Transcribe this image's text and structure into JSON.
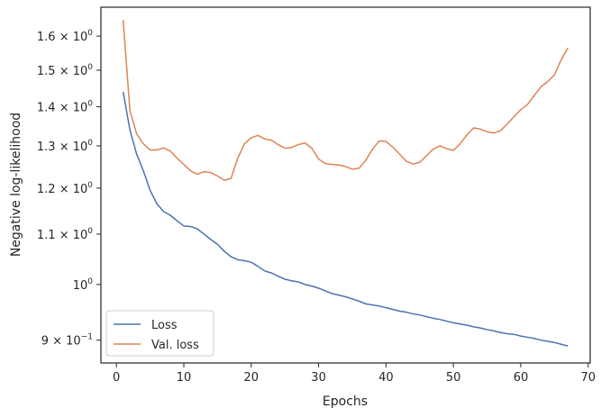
{
  "chart_data": {
    "type": "line",
    "xlabel": "Epochs",
    "ylabel": "Negative log-likelihood",
    "yscale": "log",
    "xlim": [
      -2.3,
      70.3
    ],
    "ylim": [
      0.862,
      1.69
    ],
    "grid": false,
    "legend_position": "lower-left",
    "x_ticks": [
      {
        "value": 0,
        "label": "0"
      },
      {
        "value": 10,
        "label": "10"
      },
      {
        "value": 20,
        "label": "20"
      },
      {
        "value": 30,
        "label": "30"
      },
      {
        "value": 40,
        "label": "40"
      },
      {
        "value": 50,
        "label": "50"
      },
      {
        "value": 60,
        "label": "60"
      },
      {
        "value": 70,
        "label": "70"
      }
    ],
    "y_ticks": [
      {
        "value": 0.9,
        "base": "9",
        "exp": "−1"
      },
      {
        "value": 1.0,
        "base": "10",
        "exp": "0"
      },
      {
        "value": 1.1,
        "base": "1.1",
        "exp": "0"
      },
      {
        "value": 1.2,
        "base": "1.2",
        "exp": "0"
      },
      {
        "value": 1.3,
        "base": "1.3",
        "exp": "0"
      },
      {
        "value": 1.4,
        "base": "1.4",
        "exp": "0"
      },
      {
        "value": 1.5,
        "base": "1.5",
        "exp": "0"
      },
      {
        "value": 1.6,
        "base": "1.6",
        "exp": "0"
      }
    ],
    "x": [
      1,
      2,
      3,
      4,
      5,
      6,
      7,
      8,
      9,
      10,
      11,
      12,
      13,
      14,
      15,
      16,
      17,
      18,
      19,
      20,
      21,
      22,
      23,
      24,
      25,
      26,
      27,
      28,
      29,
      30,
      31,
      32,
      33,
      34,
      35,
      36,
      37,
      38,
      39,
      40,
      41,
      42,
      43,
      44,
      45,
      46,
      47,
      48,
      49,
      50,
      51,
      52,
      53,
      54,
      55,
      56,
      57,
      58,
      59,
      60,
      61,
      62,
      63,
      64,
      65,
      66,
      67
    ],
    "series": [
      {
        "name": "Loss",
        "color": "#4c72b0",
        "values": [
          1.44,
          1.34,
          1.28,
          1.24,
          1.195,
          1.165,
          1.148,
          1.14,
          1.128,
          1.117,
          1.116,
          1.111,
          1.1,
          1.089,
          1.079,
          1.065,
          1.054,
          1.048,
          1.046,
          1.043,
          1.035,
          1.026,
          1.022,
          1.016,
          1.01,
          1.007,
          1.005,
          1.0,
          0.997,
          0.993,
          0.988,
          0.983,
          0.98,
          0.977,
          0.973,
          0.969,
          0.964,
          0.962,
          0.96,
          0.957,
          0.954,
          0.951,
          0.949,
          0.946,
          0.944,
          0.941,
          0.938,
          0.936,
          0.933,
          0.93,
          0.928,
          0.926,
          0.923,
          0.921,
          0.918,
          0.916,
          0.913,
          0.911,
          0.91,
          0.907,
          0.905,
          0.903,
          0.9,
          0.898,
          0.896,
          0.893,
          0.89
        ]
      },
      {
        "name": "Val. loss",
        "color": "#dd8452",
        "values": [
          1.65,
          1.39,
          1.33,
          1.305,
          1.29,
          1.29,
          1.295,
          1.287,
          1.27,
          1.255,
          1.24,
          1.232,
          1.238,
          1.236,
          1.228,
          1.218,
          1.222,
          1.27,
          1.305,
          1.32,
          1.326,
          1.317,
          1.314,
          1.303,
          1.294,
          1.296,
          1.303,
          1.307,
          1.294,
          1.268,
          1.257,
          1.255,
          1.254,
          1.25,
          1.244,
          1.246,
          1.265,
          1.292,
          1.312,
          1.311,
          1.297,
          1.28,
          1.263,
          1.256,
          1.26,
          1.276,
          1.292,
          1.3,
          1.293,
          1.289,
          1.305,
          1.327,
          1.345,
          1.342,
          1.335,
          1.332,
          1.338,
          1.355,
          1.374,
          1.392,
          1.406,
          1.43,
          1.454,
          1.468,
          1.487,
          1.53,
          1.565
        ]
      }
    ]
  }
}
